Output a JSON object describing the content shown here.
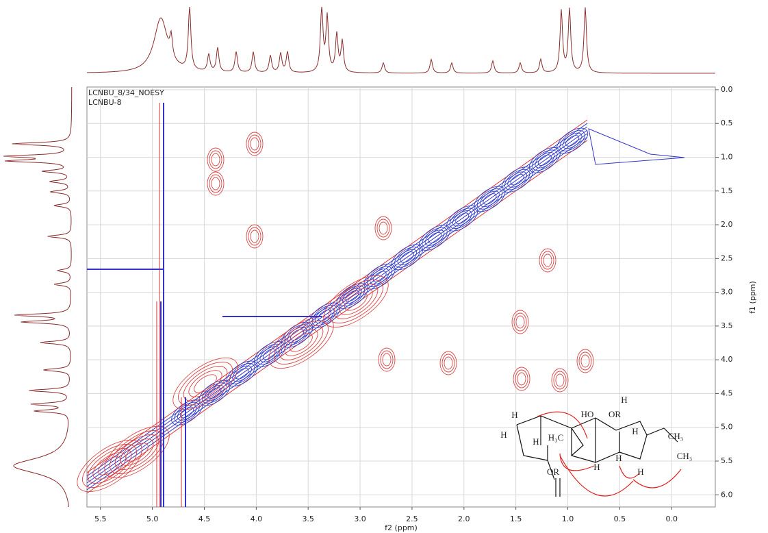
{
  "chart_data": {
    "type": "contour",
    "annotations": [
      "LCNBU_8/34_NOESY",
      "LCNBU-8"
    ],
    "xlabel": "f2 (ppm)",
    "ylabel": "f1 (ppm)",
    "xlim": [
      5.63,
      -0.42
    ],
    "ylim": [
      -0.04,
      6.18
    ],
    "xticks": [
      5.5,
      {
        "value": 5,
        "label": "5.0"
      },
      4.5,
      {
        "value": 4,
        "label": "4.0"
      },
      3.5,
      {
        "value": 3,
        "label": "3.0"
      },
      2.5,
      {
        "value": 2,
        "label": "2.0"
      },
      1.5,
      {
        "value": 1,
        "label": "1.0"
      },
      0.5,
      {
        "value": 0,
        "label": "0.0"
      }
    ],
    "yticks": [
      {
        "value": 0,
        "label": "0.0"
      },
      0.5,
      {
        "value": 1,
        "label": "1.0"
      },
      1.5,
      {
        "value": 2,
        "label": "2.0"
      },
      2.5,
      {
        "value": 3,
        "label": "3.0"
      },
      3.5,
      {
        "value": 4,
        "label": "4.0"
      },
      4.5,
      {
        "value": 5,
        "label": "5.0"
      },
      5.5,
      {
        "value": 6,
        "label": "6.0"
      }
    ],
    "grid": true,
    "structure": {
      "labels": [
        "H",
        "H",
        "H",
        "H₃C",
        "HO",
        "OR",
        "H",
        "H",
        "CH₃",
        "CH₃",
        "H",
        "H",
        "H",
        "OR"
      ]
    }
  }
}
